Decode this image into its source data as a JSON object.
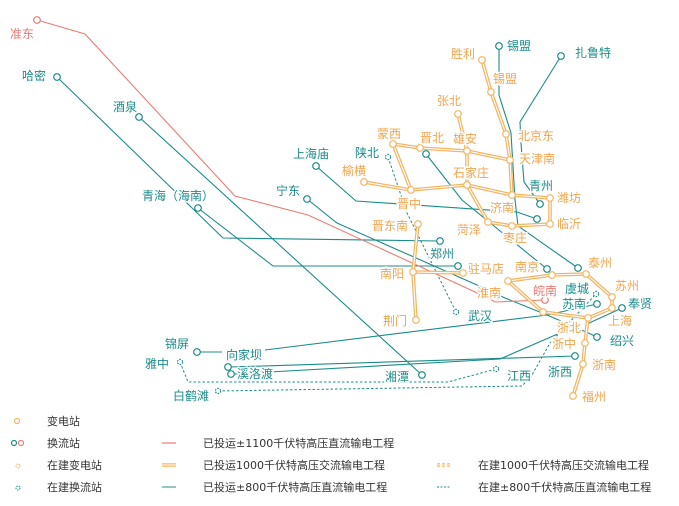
{
  "colors": {
    "ac": "#f5b562",
    "ac_label": "#f2a44e",
    "dc800": "#1b8c89",
    "dc1100": "#ef7a74"
  },
  "stations": [
    {
      "name": "胜利",
      "type": "ac"
    },
    {
      "name": "锡盟",
      "type": "ac"
    },
    {
      "name": "北京东",
      "type": "ac"
    },
    {
      "name": "天津南",
      "type": "ac"
    },
    {
      "name": "张北",
      "type": "ac"
    },
    {
      "name": "雄安",
      "type": "ac"
    },
    {
      "name": "晋北",
      "type": "ac"
    },
    {
      "name": "蒙西",
      "type": "ac"
    },
    {
      "name": "石家庄",
      "type": "ac"
    },
    {
      "name": "榆横",
      "type": "ac"
    },
    {
      "name": "晋中",
      "type": "ac"
    },
    {
      "name": "济南",
      "type": "ac"
    },
    {
      "name": "潍坊",
      "type": "ac"
    },
    {
      "name": "临沂",
      "type": "ac"
    },
    {
      "name": "枣庄",
      "type": "ac"
    },
    {
      "name": "菏泽",
      "type": "ac"
    },
    {
      "name": "晋东南",
      "type": "ac"
    },
    {
      "name": "南阳",
      "type": "ac"
    },
    {
      "name": "驻马店",
      "type": "ac"
    },
    {
      "name": "荆门",
      "type": "ac"
    },
    {
      "name": "淮南",
      "type": "ac"
    },
    {
      "name": "南京",
      "type": "ac"
    },
    {
      "name": "泰州",
      "type": "ac"
    },
    {
      "name": "苏州",
      "type": "ac"
    },
    {
      "name": "上海",
      "type": "ac"
    },
    {
      "name": "浙北",
      "type": "ac"
    },
    {
      "name": "浙中",
      "type": "ac"
    },
    {
      "name": "浙南",
      "type": "ac"
    },
    {
      "name": "福州",
      "type": "ac"
    },
    {
      "name": "锡盟",
      "type": "dc"
    },
    {
      "name": "扎鲁特",
      "type": "dc"
    },
    {
      "name": "哈密",
      "type": "dc"
    },
    {
      "name": "酒泉",
      "type": "dc"
    },
    {
      "name": "上海庙",
      "type": "dc"
    },
    {
      "name": "宁东",
      "type": "dc"
    },
    {
      "name": "青海（海南）",
      "type": "dc"
    },
    {
      "name": "陕北",
      "type": "dc-planned"
    },
    {
      "name": "青州",
      "type": "dc"
    },
    {
      "name": "郑州",
      "type": "dc"
    },
    {
      "name": "武汉",
      "type": "dc-planned"
    },
    {
      "name": "皖南",
      "type": "dc1100"
    },
    {
      "name": "准东",
      "type": "dc1100"
    },
    {
      "name": "虞城",
      "type": "dc-planned"
    },
    {
      "name": "苏南",
      "type": "dc"
    },
    {
      "name": "奉贤",
      "type": "dc"
    },
    {
      "name": "绍兴",
      "type": "dc"
    },
    {
      "name": "浙西",
      "type": "dc"
    },
    {
      "name": "江西",
      "type": "dc-planned"
    },
    {
      "name": "湘潭",
      "type": "dc"
    },
    {
      "name": "锦屏",
      "type": "dc"
    },
    {
      "name": "向家坝",
      "type": "dc-label"
    },
    {
      "name": "雅中",
      "type": "dc-planned"
    },
    {
      "name": "溪洛渡",
      "type": "dc"
    },
    {
      "name": "白鹤滩",
      "type": "dc-planned"
    }
  ],
  "legend": {
    "substation": "变电站",
    "converter": "换流站",
    "substation_planned": "在建变电站",
    "converter_planned": "在建换流站",
    "dc1100_built": "已投运±1100千伏特高压直流输电工程",
    "ac1000_built": "已投运1000千伏特高压交流输电工程",
    "dc800_built": "已投运±800千伏特高压直流输电工程",
    "ac1000_planned": "在建1000千伏特高压交流输电工程",
    "dc800_planned": "在建±800千伏特高压直流输电工程"
  }
}
